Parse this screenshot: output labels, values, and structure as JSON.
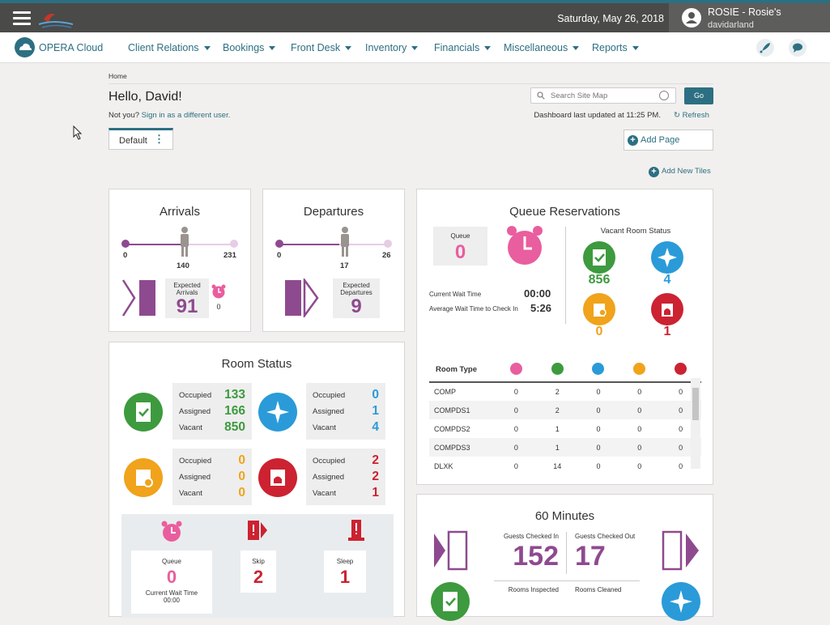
{
  "header": {
    "date": "Saturday, May 26, 2018",
    "user_name": "ROSIE - Rosie's",
    "user_id": "davidarland"
  },
  "nav": {
    "brand": "OPERA Cloud",
    "items": [
      "Client Relations",
      "Bookings",
      "Front Desk",
      "Inventory",
      "Financials",
      "Miscellaneous",
      "Reports"
    ]
  },
  "page": {
    "breadcrumb": "Home",
    "greeting": "Hello, David!",
    "not_you": "Not you?",
    "sign_in_link": "Sign in as a different user.",
    "search_placeholder": "Search Site Map",
    "go_label": "Go",
    "dashboard_updated": "Dashboard last updated at 11:25 PM.",
    "refresh_label": "Refresh",
    "default_tab": "Default",
    "add_page": "Add Page",
    "add_tiles": "Add New Tiles"
  },
  "arrivals": {
    "title": "Arrivals",
    "min": "0",
    "current": "140",
    "max": "231",
    "expected_label": "Expected Arrivals",
    "expected_value": "91",
    "queue_value": "0"
  },
  "departures": {
    "title": "Departures",
    "min": "0",
    "current": "17",
    "max": "26",
    "expected_label": "Expected Departures",
    "expected_value": "9"
  },
  "queue": {
    "title": "Queue Reservations",
    "queue_label": "Queue",
    "queue_value": "0",
    "current_wait_label": "Current Wait Time",
    "current_wait_value": "00:00",
    "avg_wait_label": "Average Wait Time to Check In",
    "avg_wait_value": "5:26",
    "vacant_title": "Vacant Room Status",
    "vacant_values": [
      "856",
      "4",
      "0",
      "1"
    ],
    "table_header": "Room Type",
    "rows": [
      [
        "COMP",
        "0",
        "2",
        "0",
        "0",
        "0"
      ],
      [
        "COMPDS1",
        "0",
        "2",
        "0",
        "0",
        "0"
      ],
      [
        "COMPDS2",
        "0",
        "1",
        "0",
        "0",
        "0"
      ],
      [
        "COMPDS3",
        "0",
        "1",
        "0",
        "0",
        "0"
      ],
      [
        "DLXK",
        "0",
        "14",
        "0",
        "0",
        "0"
      ]
    ]
  },
  "room_status": {
    "title": "Room Status",
    "labels": [
      "Occupied",
      "Assigned",
      "Vacant"
    ],
    "clean": [
      "133",
      "166",
      "850"
    ],
    "inspected": [
      "0",
      "1",
      "4"
    ],
    "pickup": [
      "0",
      "0",
      "0"
    ],
    "dirty": [
      "2",
      "2",
      "1"
    ],
    "queue_label": "Queue",
    "queue_value": "0",
    "queue_wait_label": "Current Wait Time",
    "queue_wait_value": "00:00",
    "skip_label": "Skip",
    "skip_value": "2",
    "sleep_label": "Sleep",
    "sleep_value": "1"
  },
  "sixty": {
    "title": "60 Minutes",
    "checked_in_label": "Guests Checked In",
    "checked_in_value": "152",
    "checked_out_label": "Guests Checked Out",
    "checked_out_value": "17",
    "inspected_label": "Rooms Inspected",
    "cleaned_label": "Rooms Cleaned"
  },
  "colors": {
    "teal": "#2d6f82",
    "purple": "#8e4a8f",
    "green": "#3d9a3e",
    "blue": "#2a9bd8",
    "orange": "#f0a31b",
    "red": "#cc2231",
    "pink": "#e95e9e"
  }
}
